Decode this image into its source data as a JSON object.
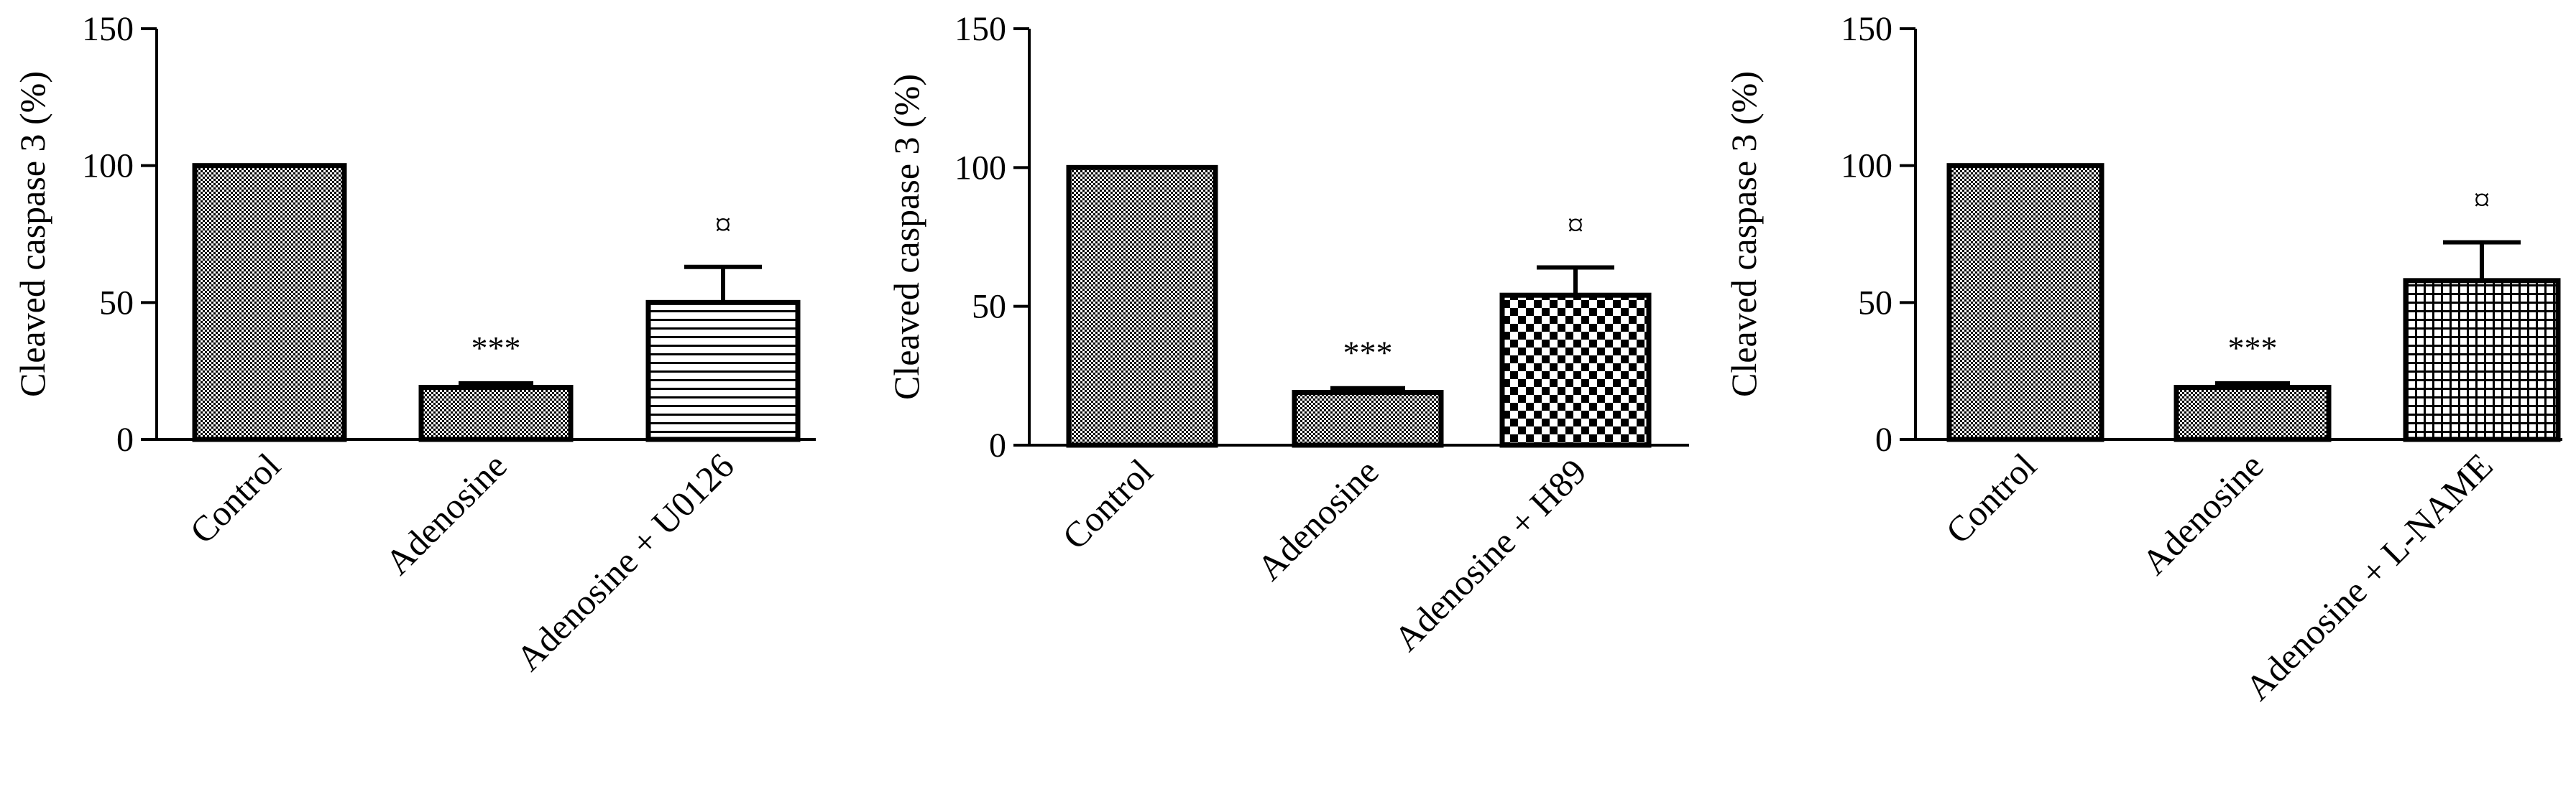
{
  "chart_data": [
    {
      "type": "bar",
      "categories": [
        "Control",
        "Adenosine",
        "Adenosine + U0126"
      ],
      "values": [
        100,
        19,
        50
      ],
      "errors": [
        0,
        1.5,
        13
      ],
      "annotations": [
        "",
        "***",
        "¤"
      ],
      "ylabel": "Cleaved caspase 3 (%)",
      "xlabel": "",
      "ylim": [
        0,
        150
      ],
      "yticks": [
        0,
        50,
        100,
        150
      ],
      "grid": false,
      "patterns": [
        "fine-check",
        "fine-check",
        "horizontal-lines"
      ]
    },
    {
      "type": "bar",
      "categories": [
        "Control",
        "Adenosine",
        "Adenosine + H89"
      ],
      "values": [
        100,
        19,
        54
      ],
      "errors": [
        0,
        1.5,
        10
      ],
      "annotations": [
        "",
        "***",
        "¤"
      ],
      "ylabel": "Cleaved caspase 3  (%)",
      "xlabel": "",
      "ylim": [
        0,
        150
      ],
      "yticks": [
        0,
        50,
        100,
        150
      ],
      "grid": false,
      "patterns": [
        "fine-check",
        "fine-check",
        "checkerboard"
      ]
    },
    {
      "type": "bar",
      "categories": [
        "Control",
        "Adenosine",
        "Adenosine + L-NAME"
      ],
      "values": [
        100,
        19,
        58
      ],
      "errors": [
        0,
        1.5,
        14
      ],
      "annotations": [
        "",
        "***",
        "¤"
      ],
      "ylabel": "Cleaved caspase 3 (%)",
      "xlabel": "",
      "ylim": [
        0,
        150
      ],
      "yticks": [
        0,
        50,
        100,
        150
      ],
      "grid": false,
      "patterns": [
        "fine-check",
        "fine-check",
        "grid"
      ]
    }
  ],
  "colors": {
    "ink": "#000000",
    "fill_light": "#ffffff"
  }
}
